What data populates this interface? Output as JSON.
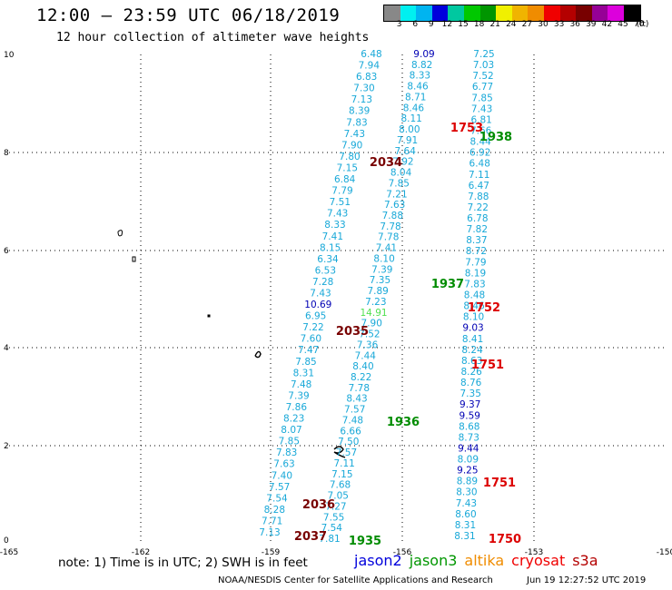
{
  "header": {
    "title": "12:00 – 23:59 UTC 06/18/2019",
    "subtitle": "12 hour collection of altimeter wave heights"
  },
  "legend": {
    "labels": [
      "3",
      "6",
      "9",
      "12",
      "15",
      "18",
      "21",
      "24",
      "27",
      "30",
      "33",
      "36",
      "39",
      "42",
      "45",
      "70",
      "(ft)"
    ],
    "colors": [
      "#888888",
      "#00f0f0",
      "#00b4f0",
      "#0000dc",
      "#00c8a0",
      "#00c800",
      "#009600",
      "#f0f000",
      "#f0b400",
      "#f08c00",
      "#f00000",
      "#b40000",
      "#780000",
      "#960096",
      "#dc00dc",
      "#000000"
    ]
  },
  "axes": {
    "x_ticks": [
      "-165",
      "-162",
      "-159",
      "-156",
      "-153",
      "-150"
    ],
    "y_ticks": [
      "0",
      "2",
      "4",
      "6",
      "8",
      "10"
    ]
  },
  "tracks": [
    {
      "satellite": "jason2",
      "color": "#18a8d8",
      "values": [
        "6.48",
        "7.94",
        "6.83",
        "7.30",
        "7.13",
        "8.39",
        "7.83",
        "7.43",
        "7.90",
        "7.80",
        "7.15",
        "6.84",
        "7.79",
        "7.51",
        "7.43",
        "8.33",
        "7.41",
        "8.15",
        "6.34",
        "6.53",
        "7.28",
        "7.43",
        "10.69",
        "6.95",
        "7.22",
        "7.60",
        "7.47",
        "7.85",
        "8.31",
        "7.48",
        "7.39",
        "7.86",
        "8.23",
        "8.07",
        "7.85",
        "7.83",
        "7.63",
        "7.40",
        "7.57",
        "7.54",
        "8.28",
        "7.71",
        "7.13"
      ]
    },
    {
      "satellite": "jason3",
      "color": "#18a8d8",
      "values": [
        "7.25",
        "7.03",
        "7.52",
        "6.77",
        "7.85",
        "7.43",
        "6.81",
        "7.66",
        "8.44",
        "6.92",
        "6.48",
        "7.11",
        "6.47",
        "7.88",
        "7.22",
        "6.78",
        "7.82",
        "8.37",
        "8.72",
        "7.79",
        "8.19",
        "7.83",
        "8.48",
        "8.46",
        "8.10",
        "9.03",
        "8.41",
        "8.24",
        "8.63",
        "8.26",
        "8.76",
        "7.35",
        "9.37",
        "9.59",
        "8.68",
        "8.73",
        "9.44",
        "8.09",
        "9.25",
        "8.89",
        "8.30",
        "7.43",
        "8.60",
        "8.31",
        "8.31"
      ]
    },
    {
      "satellite": "altika",
      "color": "#18a8d8",
      "values": [
        "9.09",
        "8.82",
        "8.33",
        "8.46",
        "8.71",
        "8.46",
        "8.11",
        "8.00",
        "7.91",
        "7.64",
        "7.92",
        "8.04",
        "7.85",
        "7.21",
        "7.63",
        "7.88",
        "7.78",
        "7.78",
        "7.41",
        "8.10",
        "7.39",
        "7.35",
        "7.89",
        "7.23",
        "14.91",
        "7.90",
        "7.52",
        "7.36",
        "7.44",
        "8.40",
        "8.22",
        "7.78",
        "8.43",
        "7.57",
        "7.48",
        "6.66",
        "7.50",
        "7.57",
        "7.11",
        "7.15",
        "7.68",
        "7.05",
        "7.27",
        "7.55",
        "7.54",
        "7.81"
      ]
    }
  ],
  "times": [
    "1753",
    "1938",
    "2034",
    "1937",
    "1752",
    "2035",
    "1751",
    "1936",
    "1751",
    "2036",
    "1750",
    "2037",
    "1935"
  ],
  "footer": {
    "note": "note: 1) Time is in UTC; 2) SWH is in feet",
    "satellites": [
      {
        "name": "jason2",
        "color": "#0000dc"
      },
      {
        "name": "jason3",
        "color": "#009600"
      },
      {
        "name": "altika",
        "color": "#f08c00"
      },
      {
        "name": "cryosat",
        "color": "#f00000"
      },
      {
        "name": "s3a",
        "color": "#b40000"
      }
    ],
    "credit": "NOAA/NESDIS Center for Satellite Applications and Research",
    "timestamp": "Jun 19 12:27:52 UTC 2019"
  }
}
